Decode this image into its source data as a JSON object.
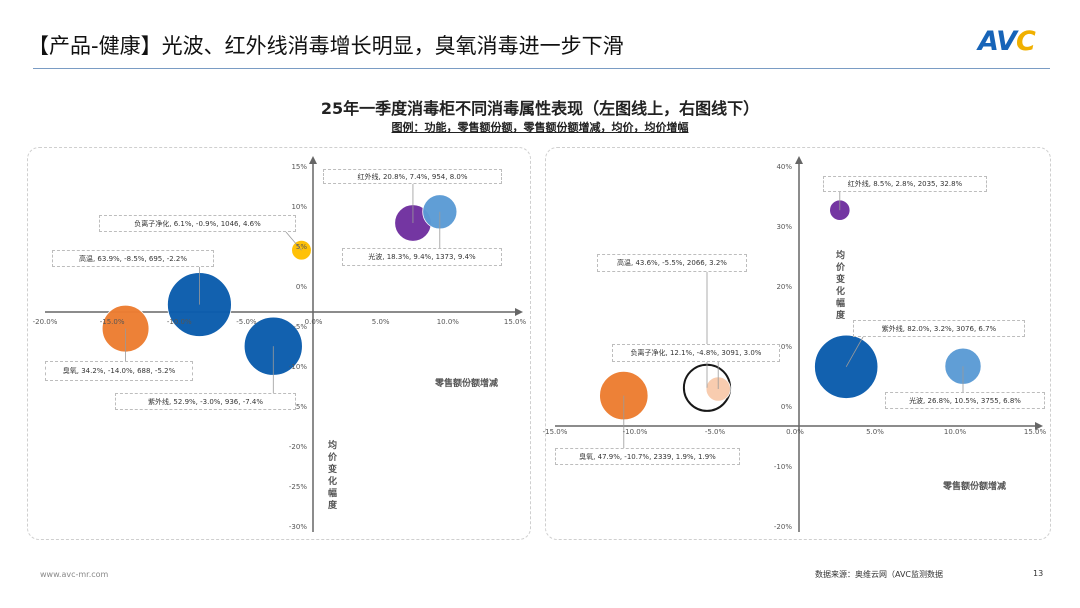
{
  "header": {
    "title": "【产品-健康】光波、红外线消毒增长明显，臭氧消毒进一步下滑",
    "logo_text": "AVC"
  },
  "subtitle": "25年一季度消毒柜不同消毒属性表现（左图线上，右图线下）",
  "legend_note": "图例：功能，零售额份额，零售额份额增减，均价，均价增幅",
  "footer": {
    "url": "www.avc-mr.com",
    "source": "数据来源：奥维云网（AVC监测数据",
    "page": "13"
  },
  "chart_data": [
    {
      "type": "bubble",
      "channel": "线上",
      "xlabel": "零售额份额增减",
      "ylabel": "均价变化幅度",
      "xlim": [
        -20,
        15
      ],
      "ylim": [
        -30,
        15
      ],
      "x_ticks": [
        "-20.0%",
        "-15.0%",
        "-10.0%",
        "-5.0%",
        "0.0%",
        "5.0%",
        "10.0%",
        "15.0%"
      ],
      "y_ticks": [
        "15%",
        "10%",
        "5%",
        "0%",
        "-5%",
        "-10%",
        "-15%",
        "-20%",
        "-25%",
        "-30%"
      ],
      "points": [
        {
          "label": "红外线, 20.8%, 7.4%, 954, 8.0%",
          "name": "红外线",
          "share": 20.8,
          "share_change": 7.4,
          "avg_price": 954,
          "price_change": 8.0,
          "color": "#7030a0"
        },
        {
          "label": "光波, 18.3%, 9.4%, 1373, 9.4%",
          "name": "光波",
          "share": 18.3,
          "share_change": 9.4,
          "avg_price": 1373,
          "price_change": 9.4,
          "color": "#5b9bd5"
        },
        {
          "label": "负离子净化, 6.1%, -0.9%, 1046, 4.6%",
          "name": "负离子净化",
          "share": 6.1,
          "share_change": -0.9,
          "avg_price": 1046,
          "price_change": 4.6,
          "color": "#ffc000"
        },
        {
          "label": "高温, 63.9%, -8.5%, 695, -2.2%",
          "name": "高温",
          "share": 63.9,
          "share_change": -8.5,
          "avg_price": 695,
          "price_change": -2.2,
          "color": "#0b5cad"
        },
        {
          "label": "臭氧, 34.2%, -14.0%, 688, -5.2%",
          "name": "臭氧",
          "share": 34.2,
          "share_change": -14.0,
          "avg_price": 688,
          "price_change": -5.2,
          "color": "#ed7d31"
        },
        {
          "label": "紫外线, 52.9%, -3.0%, 936, -7.4%",
          "name": "紫外线",
          "share": 52.9,
          "share_change": -3.0,
          "avg_price": 936,
          "price_change": -7.4,
          "color": "#0b5cad"
        }
      ]
    },
    {
      "type": "bubble",
      "channel": "线下",
      "xlabel": "零售额份额增减",
      "ylabel": "均价变化幅度",
      "xlim": [
        -15,
        15
      ],
      "ylim": [
        -20,
        40
      ],
      "x_ticks": [
        "-15.0%",
        "-10.0%",
        "-5.0%",
        "0.0%",
        "5.0%",
        "10.0%",
        "15.0%"
      ],
      "y_ticks": [
        "40%",
        "30%",
        "20%",
        "10%",
        "0%",
        "-10%",
        "-20%"
      ],
      "points": [
        {
          "label": "红外线, 8.5%, 2.8%, 2035, 32.8%",
          "name": "红外线",
          "share": 8.5,
          "share_change": 2.8,
          "avg_price": 2035,
          "price_change": 32.8,
          "color": "#7030a0"
        },
        {
          "label": "高温, 43.6%, -5.5%, 2066, 3.2%",
          "name": "高温",
          "share": 43.6,
          "share_change": -5.5,
          "avg_price": 2066,
          "price_change": 3.2,
          "color": "#ffffff"
        },
        {
          "label": "负离子净化, 12.1%, -4.8%, 3091, 3.0%",
          "name": "负离子净化",
          "share": 12.1,
          "share_change": -4.8,
          "avg_price": 3091,
          "price_change": 3.0,
          "color": "#f8cbad"
        },
        {
          "label": "紫外线, 82.0%, 3.2%, 3076, 6.7%",
          "name": "紫外线",
          "share": 82.0,
          "share_change": 3.2,
          "avg_price": 3076,
          "price_change": 6.7,
          "color": "#0b5cad"
        },
        {
          "label": "光波, 26.8%, 10.5%, 3755, 6.8%",
          "name": "光波",
          "share": 26.8,
          "share_change": 10.5,
          "avg_price": 3755,
          "price_change": 6.8,
          "color": "#5b9bd5"
        },
        {
          "label": "臭氧, 47.9%, -10.7%, 2339, 1.9%, 1.9%",
          "name": "臭氧",
          "share": 47.9,
          "share_change": -10.7,
          "avg_price": 2339,
          "price_change": 1.9,
          "color": "#ed7d31"
        }
      ]
    }
  ]
}
